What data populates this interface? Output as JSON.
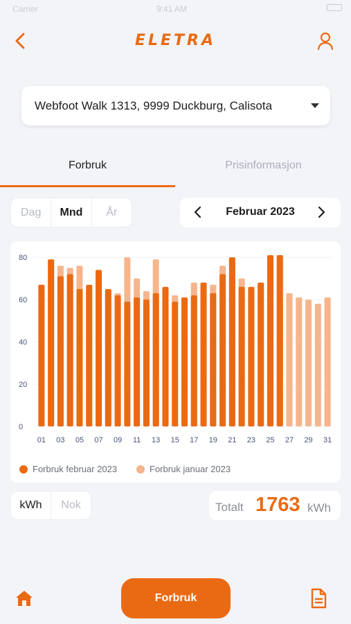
{
  "status_bar": {
    "carrier": "Carrier",
    "time": "9:41 AM"
  },
  "header": {
    "logo": "ELETRA",
    "back_icon": "chevron-left-icon",
    "profile_icon": "user-icon"
  },
  "address": {
    "value": "Webfoot Walk 1313, 9999 Duckburg, Calisota"
  },
  "tabs": [
    {
      "label": "Forbruk",
      "active": true
    },
    {
      "label": "Prisinformasjon",
      "active": false
    }
  ],
  "period_toggle": {
    "options": [
      "Dag",
      "Mnd",
      "År"
    ],
    "selected": "Mnd"
  },
  "period_nav": {
    "label": "Februar 2023"
  },
  "unit_toggle": {
    "options": [
      "kWh",
      "Nok"
    ],
    "selected": "kWh"
  },
  "total": {
    "prefix": "Totalt",
    "value": "1763",
    "unit": "kWh"
  },
  "bottom_nav": {
    "home_icon": "home-icon",
    "action_label": "Forbruk",
    "document_icon": "document-icon"
  },
  "colors": {
    "accent": "#ea6a14",
    "light": "#f6b58c"
  },
  "chart_data": {
    "type": "bar",
    "x_tick_labels": [
      "01",
      "03",
      "05",
      "07",
      "09",
      "11",
      "13",
      "15",
      "17",
      "19",
      "21",
      "23",
      "25",
      "27",
      "29",
      "31"
    ],
    "y_ticks": [
      0,
      20,
      40,
      60,
      80
    ],
    "ylim": [
      0,
      82
    ],
    "days": [
      1,
      2,
      3,
      4,
      5,
      6,
      7,
      8,
      9,
      10,
      11,
      12,
      13,
      14,
      15,
      16,
      17,
      18,
      19,
      20,
      21,
      22,
      23,
      24,
      25,
      26,
      27,
      28,
      29,
      30,
      31
    ],
    "series": [
      {
        "name": "Forbruk februar 2023",
        "color": "#ea6a14",
        "values": [
          67,
          79,
          71,
          72,
          65,
          67,
          74,
          65,
          62,
          59,
          61,
          60,
          63,
          66,
          59,
          61,
          62,
          68,
          63,
          72,
          80,
          66,
          66,
          68,
          81,
          81,
          null,
          null,
          null,
          null,
          null
        ]
      },
      {
        "name": "Forbruk januar 2023",
        "color": "#f6b58c",
        "values": [
          67,
          79,
          76,
          75,
          76,
          66,
          74,
          63,
          63,
          80,
          70,
          64,
          79,
          63,
          62,
          61,
          68,
          68,
          67,
          76,
          79,
          70,
          65,
          68,
          81,
          81,
          63,
          61,
          60,
          58,
          61
        ]
      }
    ],
    "legend_position": "bottom",
    "grid": true
  }
}
